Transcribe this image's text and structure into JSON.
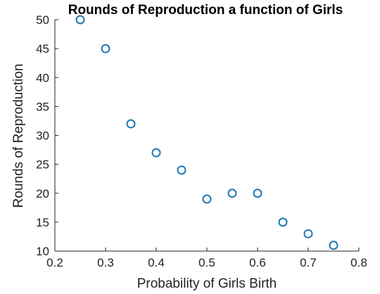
{
  "chart_data": {
    "type": "scatter",
    "title": "Rounds of Reproduction a function of Girls",
    "xlabel": "Probability of Girls Birth",
    "ylabel": "Rounds of Reproduction",
    "xlim": [
      0.2,
      0.8
    ],
    "ylim": [
      10,
      50
    ],
    "xticks": [
      "0.2",
      "0.3",
      "0.4",
      "0.5",
      "0.6",
      "0.7",
      "0.8"
    ],
    "yticks": [
      "10",
      "15",
      "20",
      "25",
      "30",
      "35",
      "40",
      "45",
      "50"
    ],
    "grid": false,
    "marker": "circle-open",
    "marker_color": "#1f77b4",
    "series": [
      {
        "x": [
          0.25,
          0.3,
          0.35,
          0.4,
          0.45,
          0.5,
          0.55,
          0.6,
          0.65,
          0.7,
          0.75
        ],
        "y": [
          50,
          45,
          32,
          27,
          24,
          19,
          20,
          20,
          15,
          13,
          11
        ]
      }
    ]
  }
}
